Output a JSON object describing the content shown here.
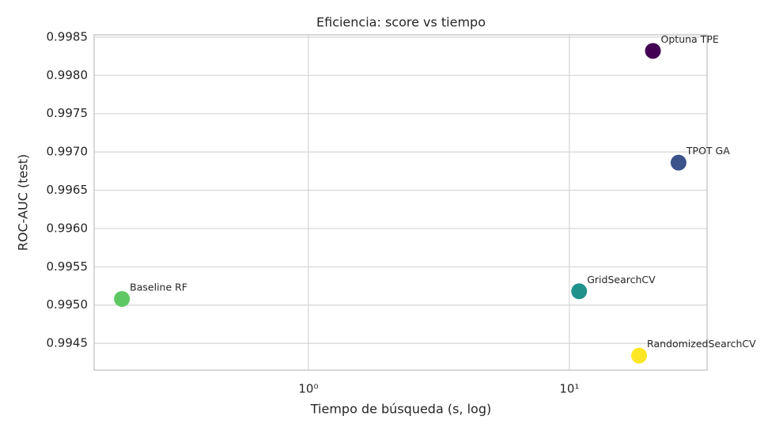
{
  "chart_data": {
    "type": "scatter",
    "title": "Eficiencia: score vs tiempo",
    "xlabel": "Tiempo de búsqueda (s, log)",
    "ylabel": "ROC-AUC (test)",
    "labels": [
      "Optuna TPE",
      "TPOT GA",
      "GridSearchCV",
      "RandomizedSearchCV",
      "Baseline RF"
    ],
    "x": [
      20.9,
      26.2,
      10.9,
      18.5,
      0.193
    ],
    "values": [
      0.99832,
      0.99686,
      0.99518,
      0.99434,
      0.99508
    ],
    "colors": [
      "#440154",
      "#3b528b",
      "#21918c",
      "#fde725",
      "#5ec962"
    ],
    "xscale": "log",
    "xlim": [
      0.151,
      33.7
    ],
    "xticks": [
      {
        "value": 1,
        "label": "10⁰"
      },
      {
        "value": 10,
        "label": "10¹"
      }
    ],
    "ylim": [
      0.99415,
      0.99853
    ],
    "yticks": [
      0.9945,
      {
        "value": 0.995,
        "label": "0.9950"
      },
      0.9955,
      {
        "value": 0.996,
        "label": "0.9960"
      },
      0.9965,
      {
        "value": 0.997,
        "label": "0.9970"
      },
      0.9975,
      {
        "value": 0.998,
        "label": "0.9980"
      },
      0.9985
    ],
    "grid": true
  }
}
